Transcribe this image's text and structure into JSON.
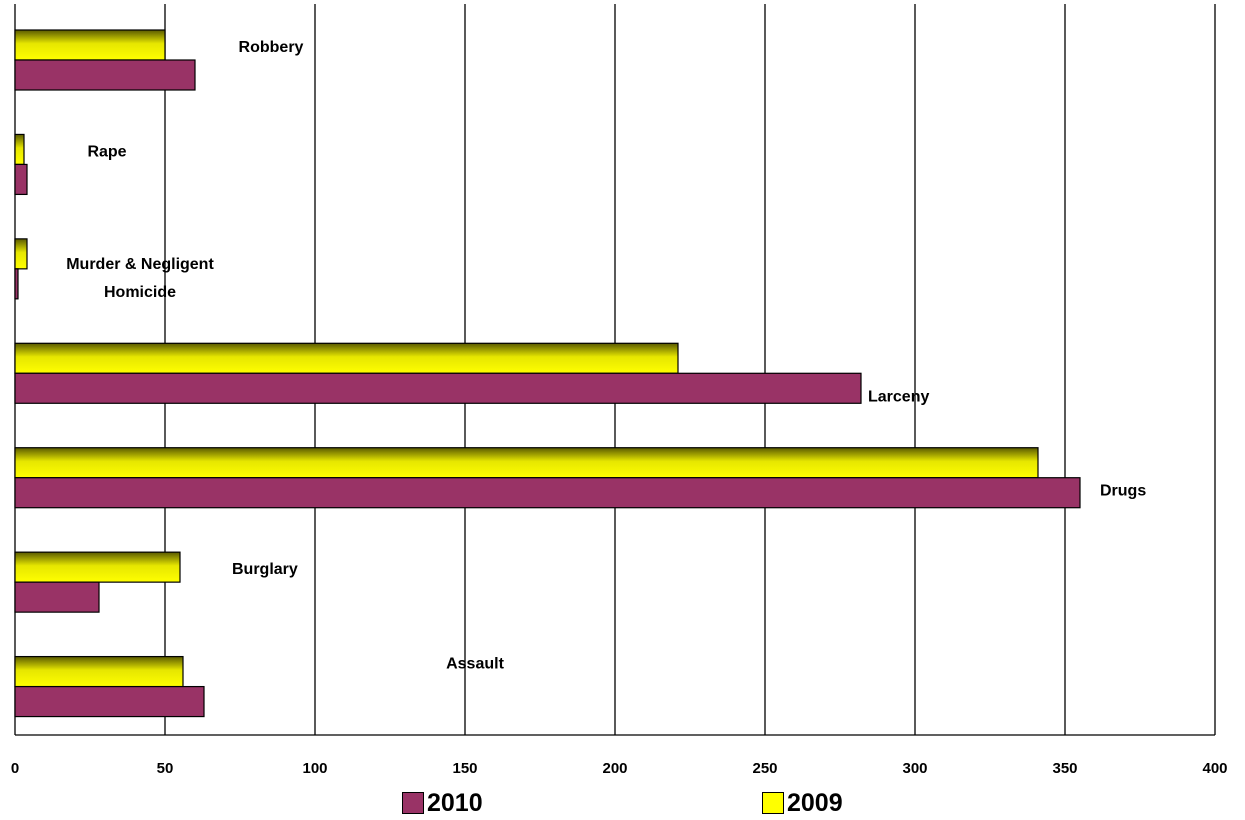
{
  "chart_data": {
    "type": "bar",
    "orientation": "horizontal",
    "categories": [
      "Assault",
      "Burglary",
      "Drugs",
      "Larceny",
      "Murder & Negligent Homicide",
      "Rape",
      "Robbery"
    ],
    "category_label_lines": [
      [
        "Assault"
      ],
      [
        "Burglary"
      ],
      [
        "Drugs"
      ],
      [
        "Larceny"
      ],
      [
        "Murder & Negligent",
        "Homicide"
      ],
      [
        "Rape"
      ],
      [
        "Robbery"
      ]
    ],
    "series": [
      {
        "name": "2010",
        "values": [
          63,
          28,
          355,
          282,
          1,
          4,
          60
        ],
        "color": "#993366"
      },
      {
        "name": "2009",
        "values": [
          56,
          55,
          341,
          221,
          4,
          3,
          50
        ],
        "color": "#ffff00"
      }
    ],
    "xlim": [
      0,
      400
    ],
    "x_ticks": [
      "0",
      "50",
      "100",
      "150",
      "200",
      "250",
      "300",
      "350",
      "400"
    ],
    "grid": "vertical",
    "legend_position": "bottom",
    "title": "",
    "xlabel": "",
    "ylabel": ""
  }
}
